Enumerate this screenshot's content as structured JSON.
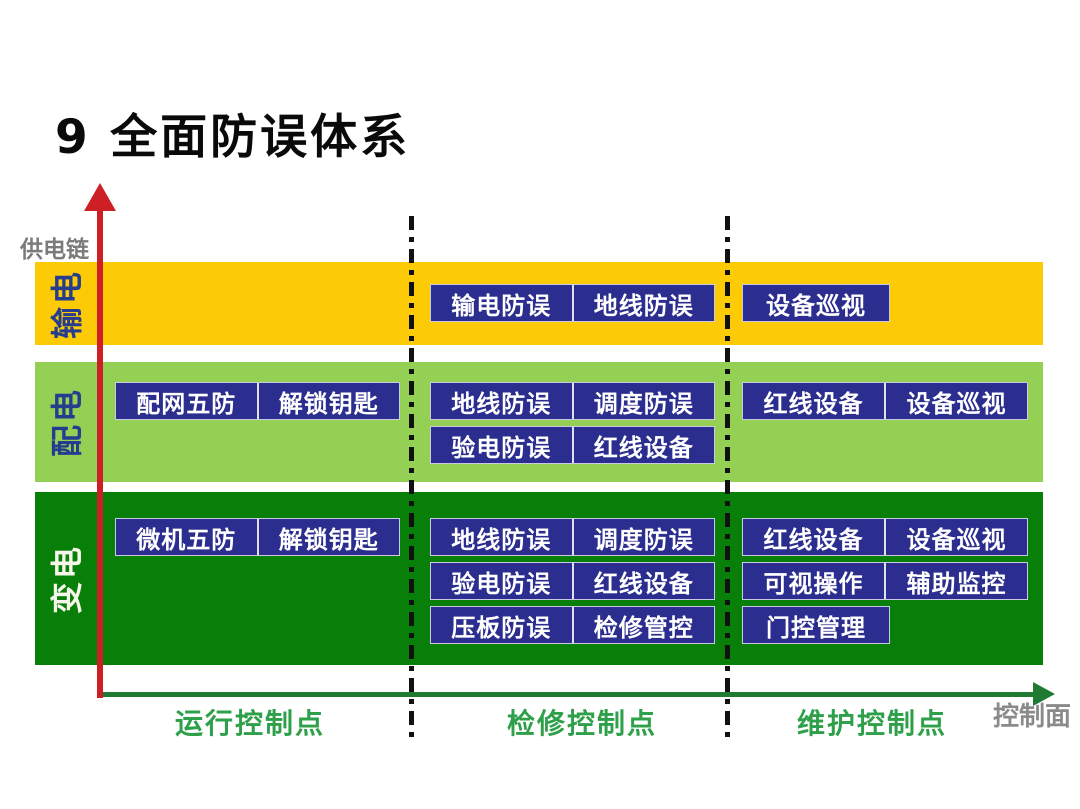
{
  "title": "9 全面防误体系",
  "axes": {
    "y_label": "供电链",
    "x_label": "控制面"
  },
  "column_labels": [
    "运行控制点",
    "检修控制点",
    "维护控制点"
  ],
  "bands": [
    {
      "label": "输电",
      "color": "#fccb05",
      "maint": [
        [
          "输电防误",
          "地线防误"
        ]
      ],
      "upkeep": [
        [
          "设备巡视"
        ]
      ]
    },
    {
      "label": "配电",
      "color": "#93d053",
      "run": [
        [
          "配网五防",
          "解锁钥匙"
        ]
      ],
      "maint": [
        [
          "地线防误",
          "调度防误"
        ],
        [
          "验电防误",
          "红线设备"
        ]
      ],
      "upkeep": [
        [
          "红线设备",
          "设备巡视"
        ]
      ]
    },
    {
      "label": "变电",
      "color": "#087f08",
      "run": [
        [
          "微机五防",
          "解锁钥匙"
        ]
      ],
      "maint": [
        [
          "地线防误",
          "调度防误"
        ],
        [
          "验电防误",
          "红线设备"
        ],
        [
          "压板防误",
          "检修管控"
        ]
      ],
      "upkeep": [
        [
          "红线设备",
          "设备巡视"
        ],
        [
          "可视操作",
          "辅助监控"
        ],
        [
          "门控管理"
        ]
      ]
    }
  ],
  "colors": {
    "band_transmission": "#fccb05",
    "band_distribution": "#93d053",
    "band_substation": "#087f08",
    "box_background": "#2c2e8f",
    "box_text": "#ffffff",
    "supply_chain_axis_red": "#ce1f26",
    "control_plane_axis_green": "#1f7a33",
    "column_label_green": "#2fa04a",
    "gray_label": "#8a8a8a"
  }
}
